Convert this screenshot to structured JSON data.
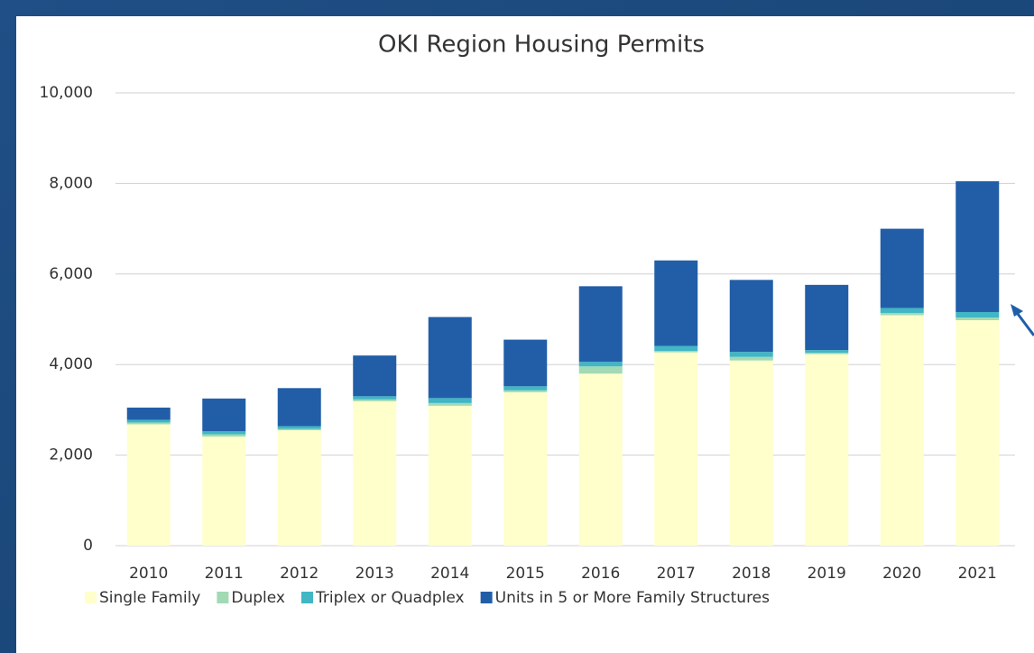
{
  "chart_data": {
    "type": "stacked_bar",
    "title": "OKI Region Housing Permits",
    "categories": [
      "2010",
      "2011",
      "2012",
      "2013",
      "2014",
      "2015",
      "2016",
      "2017",
      "2018",
      "2019",
      "2020",
      "2021"
    ],
    "series": [
      {
        "name": "Single Family",
        "color": "#ffffcc",
        "values": [
          2680,
          2410,
          2550,
          3190,
          3090,
          3390,
          3800,
          4270,
          4090,
          4230,
          5090,
          4980
        ]
      },
      {
        "name": "Duplex",
        "color": "#a1dab4",
        "values": [
          40,
          50,
          30,
          40,
          60,
          40,
          160,
          30,
          80,
          30,
          50,
          60
        ]
      },
      {
        "name": "Triplex or Quadplex",
        "color": "#41b6c4",
        "values": [
          60,
          70,
          60,
          70,
          110,
          90,
          100,
          110,
          110,
          60,
          110,
          120
        ]
      },
      {
        "name": "Units in 5 or More Family Structures",
        "color": "#225ea8",
        "values": [
          270,
          720,
          840,
          900,
          1790,
          1030,
          1670,
          1890,
          1590,
          1440,
          1750,
          2890
        ]
      }
    ],
    "ylim": [
      0,
      10000
    ],
    "yticks": [
      0,
      {
        "value": 2000,
        "label": "2,000"
      },
      {
        "value": 4000,
        "label": "4,000"
      },
      {
        "value": 6000,
        "label": "6,000"
      },
      {
        "value": 8000,
        "label": "8,000"
      },
      {
        "value": 10000,
        "label": "10,000"
      }
    ],
    "grid": true,
    "legend": "bottom"
  }
}
